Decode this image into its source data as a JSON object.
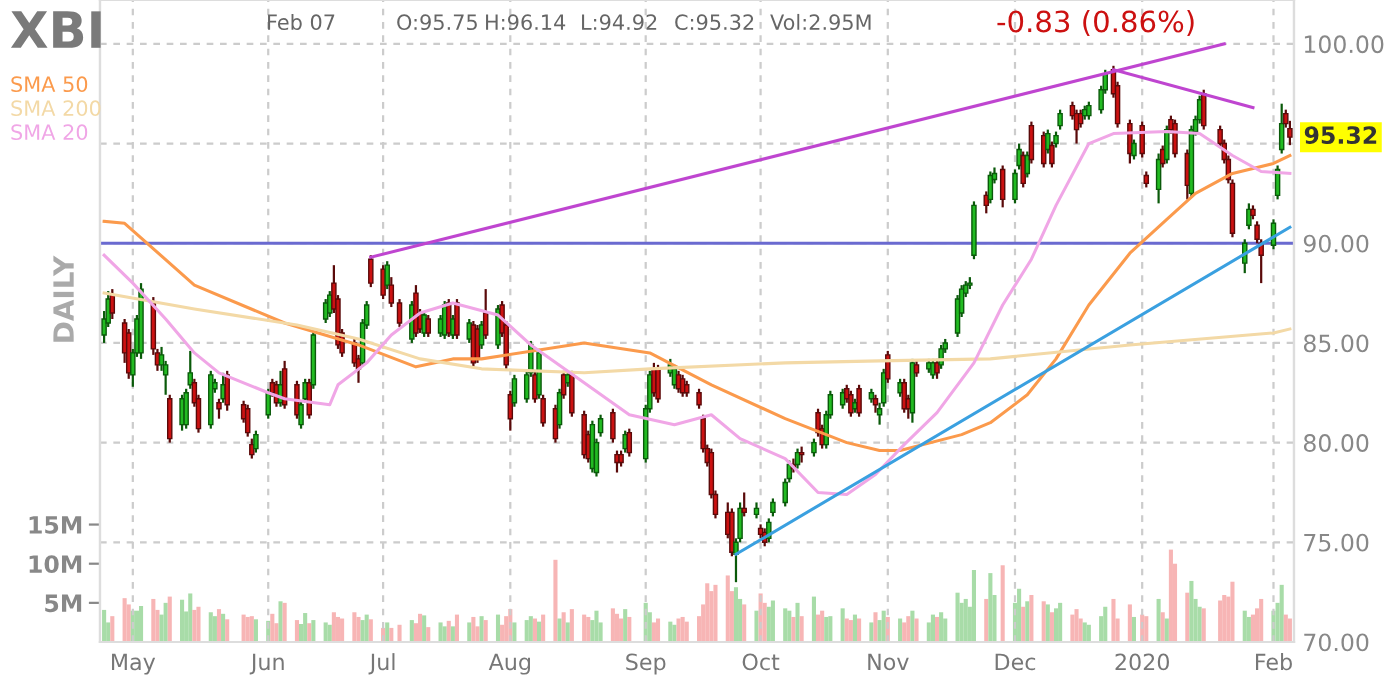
{
  "chart_data": {
    "type": "candlestick",
    "title": "XBI",
    "annotations": [
      "Feb 07",
      "O:95.75",
      "H:96.14",
      "L:94.92",
      "C:95.32",
      "Vol:2.95M",
      "-0.83 (0.86%)",
      "95.32",
      "DAILY"
    ],
    "x": [
      "2019-04-24",
      "2019-04-25",
      "2019-04-26",
      "2019-04-29",
      "2019-04-30",
      "2019-05-01",
      "2019-05-02",
      "2019-05-03",
      "2019-05-06",
      "2019-05-07",
      "2019-05-08",
      "2019-05-09",
      "2019-05-10",
      "2019-05-13",
      "2019-05-14",
      "2019-05-15",
      "2019-05-16",
      "2019-05-17",
      "2019-05-20",
      "2019-05-21",
      "2019-05-22",
      "2019-05-23",
      "2019-05-24",
      "2019-05-28",
      "2019-05-29",
      "2019-05-30",
      "2019-05-31",
      "2019-06-03",
      "2019-06-04",
      "2019-06-05",
      "2019-06-06",
      "2019-06-07",
      "2019-06-10",
      "2019-06-11",
      "2019-06-12",
      "2019-06-13",
      "2019-06-14",
      "2019-06-17",
      "2019-06-18",
      "2019-06-19",
      "2019-06-20",
      "2019-06-21",
      "2019-06-24",
      "2019-06-25",
      "2019-06-26",
      "2019-06-27",
      "2019-06-28",
      "2019-07-01",
      "2019-07-02",
      "2019-07-03",
      "2019-07-05",
      "2019-07-08",
      "2019-07-09",
      "2019-07-10",
      "2019-07-11",
      "2019-07-12",
      "2019-07-15",
      "2019-07-16",
      "2019-07-17",
      "2019-07-18",
      "2019-07-19",
      "2019-07-22",
      "2019-07-23",
      "2019-07-24",
      "2019-07-25",
      "2019-07-26",
      "2019-07-29",
      "2019-07-30",
      "2019-07-31",
      "2019-08-01",
      "2019-08-02",
      "2019-08-05",
      "2019-08-06",
      "2019-08-07",
      "2019-08-08",
      "2019-08-09",
      "2019-08-12",
      "2019-08-13",
      "2019-08-14",
      "2019-08-15",
      "2019-08-16",
      "2019-08-19",
      "2019-08-20",
      "2019-08-21",
      "2019-08-22",
      "2019-08-23",
      "2019-08-26",
      "2019-08-27",
      "2019-08-28",
      "2019-08-29",
      "2019-08-30",
      "2019-09-03",
      "2019-09-04",
      "2019-09-05",
      "2019-09-06",
      "2019-09-09",
      "2019-09-10",
      "2019-09-11",
      "2019-09-12",
      "2019-09-13",
      "2019-09-16",
      "2019-09-17",
      "2019-09-18",
      "2019-09-19",
      "2019-09-20",
      "2019-09-23",
      "2019-09-24",
      "2019-09-25",
      "2019-09-26",
      "2019-09-27",
      "2019-09-30",
      "2019-10-01",
      "2019-10-02",
      "2019-10-03",
      "2019-10-04",
      "2019-10-07",
      "2019-10-08",
      "2019-10-09",
      "2019-10-10",
      "2019-10-11",
      "2019-10-14",
      "2019-10-15",
      "2019-10-16",
      "2019-10-17",
      "2019-10-18",
      "2019-10-21",
      "2019-10-22",
      "2019-10-23",
      "2019-10-24",
      "2019-10-25",
      "2019-10-28",
      "2019-10-29",
      "2019-10-30",
      "2019-10-31",
      "2019-11-01",
      "2019-11-04",
      "2019-11-05",
      "2019-11-06",
      "2019-11-07",
      "2019-11-08",
      "2019-11-11",
      "2019-11-12",
      "2019-11-13",
      "2019-11-14",
      "2019-11-15",
      "2019-11-18",
      "2019-11-19",
      "2019-11-20",
      "2019-11-21",
      "2019-11-22",
      "2019-11-25",
      "2019-11-26",
      "2019-11-27",
      "2019-11-29",
      "2019-12-02",
      "2019-12-03",
      "2019-12-04",
      "2019-12-05",
      "2019-12-06",
      "2019-12-09",
      "2019-12-10",
      "2019-12-11",
      "2019-12-12",
      "2019-12-13",
      "2019-12-16",
      "2019-12-17",
      "2019-12-18",
      "2019-12-19",
      "2019-12-20",
      "2019-12-23",
      "2019-12-24",
      "2019-12-26",
      "2019-12-27",
      "2019-12-30",
      "2019-12-31",
      "2020-01-02",
      "2020-01-03",
      "2020-01-06",
      "2020-01-07",
      "2020-01-08",
      "2020-01-09",
      "2020-01-10",
      "2020-01-13",
      "2020-01-14",
      "2020-01-15",
      "2020-01-16",
      "2020-01-17",
      "2020-01-21",
      "2020-01-22",
      "2020-01-23",
      "2020-01-24",
      "2020-01-27",
      "2020-01-28",
      "2020-01-29",
      "2020-01-30",
      "2020-01-31",
      "2020-02-03",
      "2020-02-04",
      "2020-02-05",
      "2020-02-06",
      "2020-02-07"
    ],
    "ohlc": [
      [
        85.4,
        86.6,
        85.0,
        86.2
      ],
      [
        86.0,
        87.6,
        85.8,
        87.2
      ],
      [
        87.4,
        87.7,
        86.2,
        86.5
      ],
      [
        86.0,
        86.2,
        84.0,
        84.5
      ],
      [
        85.5,
        85.7,
        83.2,
        83.5
      ],
      [
        83.4,
        84.7,
        82.8,
        84.5
      ],
      [
        84.5,
        86.4,
        84.3,
        86.2
      ],
      [
        84.5,
        88.0,
        84.2,
        87.7
      ],
      [
        87.0,
        87.3,
        84.4,
        84.7
      ],
      [
        84.5,
        84.7,
        83.6,
        83.9
      ],
      [
        83.9,
        84.8,
        83.6,
        84.4
      ],
      [
        83.4,
        84.1,
        82.4,
        83.9
      ],
      [
        82.2,
        82.4,
        80.0,
        80.2
      ],
      [
        80.9,
        82.4,
        80.6,
        82.2
      ],
      [
        80.9,
        82.7,
        80.7,
        82.5
      ],
      [
        82.9,
        84.6,
        82.7,
        83.5
      ],
      [
        83.0,
        83.2,
        81.8,
        82.0
      ],
      [
        82.2,
        82.4,
        80.5,
        80.7
      ],
      [
        80.9,
        83.6,
        80.7,
        83.4
      ],
      [
        82.7,
        83.2,
        82.5,
        83.0
      ],
      [
        82.0,
        82.2,
        81.2,
        81.7
      ],
      [
        82.2,
        83.5,
        82.0,
        82.9
      ],
      [
        83.4,
        83.6,
        81.6,
        81.9
      ],
      [
        81.9,
        82.1,
        81.0,
        81.2
      ],
      [
        81.7,
        81.9,
        80.3,
        80.5
      ],
      [
        79.9,
        80.2,
        79.2,
        79.4
      ],
      [
        79.7,
        80.6,
        79.5,
        80.4
      ],
      [
        81.4,
        82.7,
        81.2,
        82.5
      ],
      [
        83.0,
        83.2,
        82.3,
        82.5
      ],
      [
        82.9,
        83.1,
        81.8,
        82.0
      ],
      [
        82.0,
        83.6,
        81.8,
        82.9
      ],
      [
        83.7,
        84.1,
        81.7,
        81.9
      ],
      [
        82.9,
        83.1,
        81.2,
        81.4
      ],
      [
        80.9,
        82.1,
        80.7,
        81.9
      ],
      [
        82.2,
        83.2,
        82.0,
        83.0
      ],
      [
        83.0,
        83.2,
        81.2,
        81.4
      ],
      [
        82.9,
        85.6,
        82.7,
        85.4
      ],
      [
        86.2,
        87.2,
        86.0,
        87.0
      ],
      [
        86.5,
        87.6,
        86.3,
        87.4
      ],
      [
        88.0,
        88.9,
        86.5,
        86.7
      ],
      [
        87.2,
        87.4,
        84.7,
        84.9
      ],
      [
        85.5,
        85.7,
        84.3,
        84.5
      ],
      [
        85.0,
        85.2,
        83.8,
        84.0
      ],
      [
        84.2,
        84.4,
        83.0,
        83.7
      ],
      [
        84.0,
        86.2,
        83.8,
        86.0
      ],
      [
        85.9,
        87.1,
        85.7,
        86.9
      ],
      [
        89.2,
        89.4,
        87.8,
        88.0
      ],
      [
        88.7,
        88.9,
        87.2,
        87.4
      ],
      [
        87.9,
        89.1,
        87.7,
        88.9
      ],
      [
        87.9,
        88.3,
        86.8,
        87.0
      ],
      [
        87.0,
        87.2,
        85.8,
        86.0
      ],
      [
        85.2,
        87.1,
        85.0,
        86.9
      ],
      [
        87.5,
        87.9,
        85.3,
        85.5
      ],
      [
        86.5,
        86.7,
        85.5,
        85.7
      ],
      [
        85.5,
        86.6,
        85.3,
        86.4
      ],
      [
        86.2,
        86.4,
        85.3,
        85.5
      ],
      [
        85.5,
        86.4,
        85.3,
        86.2
      ],
      [
        85.4,
        87.1,
        85.2,
        86.9
      ],
      [
        87.0,
        87.2,
        85.3,
        85.5
      ],
      [
        85.4,
        86.4,
        85.2,
        86.2
      ],
      [
        87.0,
        87.2,
        85.2,
        85.4
      ],
      [
        85.2,
        86.2,
        85.0,
        86.0
      ],
      [
        85.9,
        86.1,
        83.8,
        84.0
      ],
      [
        85.7,
        85.9,
        84.0,
        84.2
      ],
      [
        84.9,
        86.1,
        84.7,
        85.9
      ],
      [
        86.5,
        87.7,
        85.2,
        85.4
      ],
      [
        84.9,
        86.9,
        84.7,
        86.7
      ],
      [
        86.9,
        87.1,
        85.3,
        85.5
      ],
      [
        85.9,
        86.1,
        83.7,
        83.9
      ],
      [
        82.4,
        82.6,
        80.6,
        81.2
      ],
      [
        82.0,
        83.4,
        81.8,
        83.2
      ],
      [
        82.2,
        83.6,
        82.0,
        83.4
      ],
      [
        83.5,
        85.1,
        83.3,
        84.9
      ],
      [
        83.4,
        83.6,
        82.0,
        82.2
      ],
      [
        82.4,
        84.7,
        82.2,
        84.5
      ],
      [
        82.2,
        82.4,
        80.8,
        81.0
      ],
      [
        81.7,
        81.9,
        80.0,
        80.2
      ],
      [
        80.9,
        82.7,
        80.7,
        82.5
      ],
      [
        83.4,
        83.6,
        82.2,
        82.4
      ],
      [
        83.0,
        83.6,
        82.8,
        83.4
      ],
      [
        83.4,
        83.6,
        81.3,
        81.5
      ],
      [
        81.4,
        81.6,
        79.2,
        79.4
      ],
      [
        80.4,
        80.6,
        79.0,
        79.2
      ],
      [
        78.7,
        81.1,
        78.5,
        80.9
      ],
      [
        78.5,
        80.2,
        78.3,
        80.0
      ],
      [
        80.5,
        81.4,
        80.3,
        81.2
      ],
      [
        81.5,
        81.7,
        80.0,
        80.2
      ],
      [
        79.4,
        79.6,
        78.5,
        79.0
      ],
      [
        79.4,
        79.6,
        78.8,
        79.0
      ],
      [
        79.7,
        80.6,
        79.5,
        80.4
      ],
      [
        80.5,
        80.7,
        79.3,
        79.5
      ],
      [
        79.2,
        81.9,
        79.0,
        81.7
      ],
      [
        81.7,
        83.6,
        81.5,
        83.4
      ],
      [
        83.7,
        84.0,
        82.3,
        82.5
      ],
      [
        83.7,
        83.9,
        82.0,
        82.2
      ],
      [
        83.5,
        84.2,
        83.3,
        83.9
      ],
      [
        82.9,
        83.9,
        82.7,
        83.7
      ],
      [
        83.4,
        83.6,
        82.5,
        82.7
      ],
      [
        83.2,
        83.4,
        82.3,
        82.5
      ],
      [
        82.9,
        83.1,
        82.3,
        82.5
      ],
      [
        82.5,
        82.7,
        81.7,
        81.9
      ],
      [
        81.2,
        81.4,
        79.5,
        79.7
      ],
      [
        79.7,
        79.9,
        78.8,
        79.0
      ],
      [
        79.5,
        79.7,
        77.2,
        77.4
      ],
      [
        77.4,
        77.6,
        76.2,
        76.4
      ],
      [
        76.5,
        77.0,
        75.2,
        75.4
      ],
      [
        76.5,
        76.7,
        74.3,
        74.5
      ],
      [
        74.4,
        75.2,
        73.0,
        75.0
      ],
      [
        75.2,
        77.0,
        75.0,
        76.7
      ],
      [
        76.7,
        77.5,
        76.3,
        76.5
      ],
      [
        76.4,
        77.0,
        76.2,
        76.7
      ],
      [
        75.7,
        75.9,
        75.2,
        75.4
      ],
      [
        75.5,
        75.7,
        74.8,
        75.0
      ],
      [
        75.2,
        76.2,
        75.0,
        76.0
      ],
      [
        76.5,
        77.2,
        76.3,
        77.0
      ],
      [
        77.0,
        78.2,
        76.8,
        78.0
      ],
      [
        78.2,
        79.1,
        78.0,
        78.9
      ],
      [
        78.9,
        79.2,
        78.5,
        78.7
      ],
      [
        78.9,
        79.7,
        78.7,
        79.5
      ],
      [
        79.5,
        79.8,
        79.0,
        79.4
      ],
      [
        79.5,
        80.2,
        79.3,
        80.0
      ],
      [
        81.5,
        81.7,
        80.3,
        80.5
      ],
      [
        80.7,
        80.9,
        79.7,
        79.9
      ],
      [
        79.9,
        81.6,
        79.7,
        81.4
      ],
      [
        81.4,
        82.6,
        81.2,
        82.4
      ],
      [
        81.9,
        82.7,
        81.7,
        82.5
      ],
      [
        82.7,
        82.9,
        82.0,
        82.2
      ],
      [
        82.4,
        82.6,
        81.3,
        81.5
      ],
      [
        81.7,
        82.2,
        81.5,
        82.0
      ],
      [
        82.7,
        82.9,
        81.3,
        81.5
      ],
      [
        82.2,
        82.7,
        82.0,
        82.5
      ],
      [
        82.2,
        82.4,
        81.5,
        81.9
      ],
      [
        81.4,
        82.0,
        80.9,
        81.7
      ],
      [
        82.0,
        83.7,
        81.8,
        83.5
      ],
      [
        84.4,
        84.6,
        83.0,
        83.2
      ],
      [
        82.5,
        83.2,
        82.3,
        83.0
      ],
      [
        83.0,
        83.2,
        81.5,
        81.7
      ],
      [
        82.2,
        82.4,
        81.2,
        81.7
      ],
      [
        81.5,
        84.2,
        81.0,
        84.0
      ],
      [
        83.9,
        84.1,
        83.3,
        83.5
      ],
      [
        83.7,
        84.2,
        83.5,
        84.0
      ],
      [
        83.4,
        84.2,
        83.2,
        84.0
      ],
      [
        84.0,
        84.2,
        83.2,
        83.5
      ],
      [
        83.9,
        84.9,
        83.7,
        84.7
      ],
      [
        84.7,
        85.2,
        84.5,
        85.0
      ],
      [
        85.5,
        87.4,
        85.3,
        87.2
      ],
      [
        86.5,
        87.9,
        86.3,
        87.7
      ],
      [
        87.5,
        88.1,
        87.3,
        87.9
      ],
      [
        87.9,
        88.3,
        87.7,
        88.0
      ],
      [
        89.4,
        92.1,
        89.2,
        91.9
      ],
      [
        92.4,
        92.6,
        91.5,
        91.9
      ],
      [
        92.2,
        93.6,
        92.0,
        93.4
      ],
      [
        93.2,
        93.8,
        93.0,
        93.5
      ],
      [
        93.7,
        93.9,
        91.8,
        92.2
      ],
      [
        92.2,
        93.7,
        92.0,
        93.5
      ],
      [
        93.9,
        95.0,
        93.7,
        94.7
      ],
      [
        94.4,
        94.6,
        92.8,
        93.0
      ],
      [
        93.5,
        94.6,
        93.3,
        94.4
      ],
      [
        95.9,
        96.1,
        94.0,
        94.2
      ],
      [
        95.4,
        95.6,
        93.8,
        94.0
      ],
      [
        94.7,
        95.7,
        94.5,
        95.5
      ],
      [
        94.9,
        95.1,
        93.8,
        94.0
      ],
      [
        95.0,
        95.6,
        94.8,
        95.4
      ],
      [
        95.9,
        96.7,
        95.7,
        96.5
      ],
      [
        96.9,
        97.1,
        96.2,
        96.4
      ],
      [
        96.5,
        96.7,
        95.0,
        95.7
      ],
      [
        96.5,
        96.7,
        95.8,
        96.0
      ],
      [
        96.4,
        96.9,
        96.2,
        96.7
      ],
      [
        96.4,
        97.1,
        96.2,
        96.9
      ],
      [
        96.7,
        97.9,
        96.5,
        97.7
      ],
      [
        97.7,
        98.7,
        97.5,
        98.5
      ],
      [
        98.7,
        98.9,
        97.3,
        97.5
      ],
      [
        97.9,
        98.1,
        95.8,
        96.0
      ],
      [
        96.0,
        96.2,
        94.0,
        94.5
      ],
      [
        94.4,
        95.2,
        94.2,
        95.0
      ],
      [
        95.9,
        96.1,
        94.3,
        94.5
      ],
      [
        93.4,
        93.6,
        92.8,
        93.0
      ],
      [
        92.7,
        94.5,
        92.0,
        94.2
      ],
      [
        94.7,
        94.9,
        93.8,
        94.0
      ],
      [
        94.2,
        95.9,
        94.0,
        95.7
      ],
      [
        96.2,
        96.4,
        95.5,
        95.7
      ],
      [
        96.0,
        96.2,
        94.3,
        94.5
      ],
      [
        94.5,
        94.7,
        92.2,
        92.9
      ],
      [
        92.5,
        95.9,
        92.3,
        95.7
      ],
      [
        95.6,
        96.4,
        95.4,
        96.2
      ],
      [
        96.2,
        97.4,
        96.0,
        97.2
      ],
      [
        97.5,
        97.7,
        95.7,
        95.9
      ],
      [
        95.7,
        95.9,
        94.8,
        95.0
      ],
      [
        95.0,
        95.2,
        94.0,
        94.2
      ],
      [
        94.2,
        94.4,
        93.0,
        93.2
      ],
      [
        93.0,
        93.2,
        90.3,
        90.5
      ],
      [
        89.0,
        90.2,
        88.5,
        90.0
      ],
      [
        90.9,
        92.0,
        90.7,
        91.7
      ],
      [
        91.7,
        91.9,
        91.2,
        91.4
      ],
      [
        90.9,
        91.1,
        90.0,
        90.2
      ],
      [
        90.0,
        90.2,
        88.0,
        89.4
      ],
      [
        89.9,
        91.2,
        89.7,
        91.0
      ],
      [
        92.4,
        93.9,
        92.2,
        93.7
      ],
      [
        94.7,
        97.0,
        94.5,
        96.0
      ],
      [
        96.5,
        96.7,
        95.8,
        96.0
      ],
      [
        95.75,
        96.14,
        94.92,
        95.32
      ]
    ],
    "series": [
      {
        "type": "bar",
        "axis": "y2",
        "values": [
          4.1,
          2.5,
          3.3,
          5.6,
          4.8,
          4.0,
          4.0,
          4.6,
          5.5,
          4.1,
          3.5,
          5.0,
          5.8,
          5.4,
          3.9,
          6.2,
          4.1,
          4.5,
          3.8,
          3.3,
          4.2,
          3.6,
          2.9,
          3.5,
          3.2,
          3.3,
          2.9,
          2.7,
          3.6,
          2.4,
          5.2,
          5.0,
          2.8,
          2.3,
          3.7,
          2.4,
          2.8,
          2.5,
          2.2,
          3.8,
          3.2,
          3.0,
          3.8,
          3.2,
          2.8,
          3.5,
          2.9,
          1.8,
          2.5,
          1.8,
          2.2,
          2.8,
          2.4,
          3.6,
          3.4,
          1.9,
          2.5,
          2.0,
          2.7,
          2.0,
          3.5,
          2.5,
          3.2,
          2.0,
          3.3,
          2.8,
          3.5,
          2.2,
          3.3,
          4.2,
          2.5,
          2.8,
          3.3,
          3.0,
          2.6,
          3.5,
          10.5,
          3.0,
          3.8,
          2.5,
          4.2,
          3.5,
          3.2,
          2.8,
          4.0,
          2.5,
          4.3,
          3.6,
          3.0,
          4.2,
          3.2,
          5.0,
          3.8,
          2.5,
          3.0,
          2.6,
          2.2,
          3.0,
          3.2,
          2.6,
          3.3,
          4.8,
          7.5,
          6.5,
          7.3,
          8.5,
          6.5,
          7.0,
          5.5,
          4.8,
          4.0,
          6.2,
          5.0,
          4.5,
          5.3,
          4.3,
          4.0,
          3.2,
          5.0,
          3.3,
          5.8,
          3.5,
          4.0,
          3.2,
          3.3,
          4.3,
          3.0,
          2.8,
          3.5,
          3.0,
          2.5,
          3.8,
          2.8,
          4.0,
          3.2,
          3.0,
          2.5,
          3.3,
          4.0,
          3.0,
          2.5,
          3.5,
          3.2,
          3.8,
          3.0,
          6.3,
          5.0,
          5.5,
          4.5,
          9.2,
          5.5,
          8.8,
          6.0,
          9.8,
          5.0,
          6.8,
          4.5,
          5.2,
          6.0,
          5.2,
          4.8,
          3.8,
          4.3,
          5.0,
          3.5,
          4.2,
          3.0,
          2.5,
          2.2,
          3.3,
          4.5,
          5.5,
          3.0,
          4.8,
          3.2,
          3.5,
          3.3,
          5.5,
          3.8,
          3.0,
          11.8,
          10.0,
          6.3,
          7.8,
          5.5,
          4.5,
          4.3,
          5.3,
          6.0,
          5.8,
          7.7,
          4.0,
          3.2,
          3.5,
          4.3,
          5.5,
          4.0,
          5.0,
          7.3,
          3.5,
          3.0
        ],
        "colors": [
          "#a8dca8",
          "#a8dca8",
          "#f7b5b5",
          "#f7b5b5",
          "#f7b5b5",
          "#a8dca8",
          "#a8dca8",
          "#a8dca8",
          "#f7b5b5",
          "#f7b5b5",
          "#a8dca8",
          "#a8dca8",
          "#f7b5b5",
          "#a8dca8",
          "#a8dca8",
          "#a8dca8",
          "#f7b5b5",
          "#f7b5b5",
          "#a8dca8",
          "#a8dca8",
          "#f7b5b5",
          "#a8dca8",
          "#f7b5b5",
          "#f7b5b5",
          "#f7b5b5",
          "#f7b5b5",
          "#a8dca8",
          "#a8dca8",
          "#f7b5b5",
          "#f7b5b5",
          "#a8dca8",
          "#f7b5b5",
          "#f7b5b5",
          "#a8dca8",
          "#a8dca8",
          "#f7b5b5",
          "#a8dca8",
          "#a8dca8",
          "#a8dca8",
          "#f7b5b5",
          "#f7b5b5",
          "#f7b5b5",
          "#f7b5b5",
          "#f7b5b5",
          "#a8dca8",
          "#a8dca8",
          "#f7b5b5",
          "#f7b5b5",
          "#a8dca8",
          "#f7b5b5",
          "#f7b5b5",
          "#a8dca8",
          "#f7b5b5",
          "#f7b5b5",
          "#a8dca8",
          "#f7b5b5",
          "#a8dca8",
          "#a8dca8",
          "#f7b5b5",
          "#a8dca8",
          "#f7b5b5",
          "#a8dca8",
          "#f7b5b5",
          "#f7b5b5",
          "#a8dca8",
          "#f7b5b5",
          "#a8dca8",
          "#f7b5b5",
          "#f7b5b5",
          "#f7b5b5",
          "#a8dca8",
          "#a8dca8",
          "#a8dca8",
          "#f7b5b5",
          "#a8dca8",
          "#f7b5b5",
          "#f7b5b5",
          "#a8dca8",
          "#f7b5b5",
          "#a8dca8",
          "#f7b5b5",
          "#f7b5b5",
          "#f7b5b5",
          "#a8dca8",
          "#a8dca8",
          "#a8dca8",
          "#f7b5b5",
          "#f7b5b5",
          "#f7b5b5",
          "#a8dca8",
          "#f7b5b5",
          "#a8dca8",
          "#a8dca8",
          "#f7b5b5",
          "#f7b5b5",
          "#a8dca8",
          "#a8dca8",
          "#f7b5b5",
          "#f7b5b5",
          "#f7b5b5",
          "#f7b5b5",
          "#f7b5b5",
          "#f7b5b5",
          "#f7b5b5",
          "#f7b5b5",
          "#f7b5b5",
          "#f7b5b5",
          "#a8dca8",
          "#a8dca8",
          "#f7b5b5",
          "#a8dca8",
          "#f7b5b5",
          "#f7b5b5",
          "#a8dca8",
          "#a8dca8",
          "#a8dca8",
          "#a8dca8",
          "#f7b5b5",
          "#a8dca8",
          "#f7b5b5",
          "#a8dca8",
          "#f7b5b5",
          "#f7b5b5",
          "#a8dca8",
          "#a8dca8",
          "#a8dca8",
          "#f7b5b5",
          "#f7b5b5",
          "#a8dca8",
          "#f7b5b5",
          "#a8dca8",
          "#f7b5b5",
          "#a8dca8",
          "#a8dca8",
          "#f7b5b5",
          "#a8dca8",
          "#f7b5b5",
          "#f7b5b5",
          "#a8dca8",
          "#f7b5b5",
          "#a8dca8",
          "#a8dca8",
          "#f7b5b5",
          "#a8dca8",
          "#a8dca8",
          "#a8dca8",
          "#a8dca8",
          "#a8dca8",
          "#a8dca8",
          "#a8dca8",
          "#f7b5b5",
          "#a8dca8",
          "#a8dca8",
          "#f7b5b5",
          "#a8dca8",
          "#a8dca8",
          "#f7b5b5",
          "#a8dca8",
          "#f7b5b5",
          "#f7b5b5",
          "#a8dca8",
          "#f7b5b5",
          "#a8dca8",
          "#a8dca8",
          "#f7b5b5",
          "#f7b5b5",
          "#f7b5b5",
          "#a8dca8",
          "#a8dca8",
          "#a8dca8",
          "#a8dca8",
          "#f7b5b5",
          "#f7b5b5",
          "#f7b5b5",
          "#a8dca8",
          "#f7b5b5",
          "#f7b5b5",
          "#a8dca8",
          "#f7b5b5",
          "#a8dca8",
          "#f7b5b5",
          "#f7b5b5",
          "#f7b5b5",
          "#a8dca8",
          "#a8dca8",
          "#a8dca8",
          "#f7b5b5",
          "#f7b5b5",
          "#f7b5b5",
          "#f7b5b5",
          "#f7b5b5",
          "#a8dca8",
          "#a8dca8",
          "#f7b5b5",
          "#f7b5b5",
          "#f7b5b5",
          "#a8dca8",
          "#a8dca8",
          "#a8dca8",
          "#f7b5b5",
          "#f7b5b5"
        ]
      },
      {
        "type": "line",
        "name": "SMA 50",
        "color": "#fb9a4c",
        "x": [
          "2019-04-24",
          "2019-04-29",
          "2019-05-16",
          "2019-06-07",
          "2019-06-25",
          "2019-07-09",
          "2019-07-18",
          "2019-07-25",
          "2019-08-19",
          "2019-09-04",
          "2019-09-19",
          "2019-10-07",
          "2019-10-22",
          "2019-10-30",
          "2019-11-04",
          "2019-11-19",
          "2019-11-26",
          "2019-12-05",
          "2019-12-12",
          "2019-12-20",
          "2019-12-30",
          "2020-01-08",
          "2020-01-15",
          "2020-01-24",
          "2020-02-03",
          "2020-02-07"
        ],
        "values": [
          91.1,
          91.0,
          87.9,
          86.0,
          84.9,
          83.8,
          84.2,
          84.2,
          85.0,
          84.5,
          82.9,
          81.2,
          80.0,
          79.6,
          79.6,
          80.4,
          81.0,
          82.4,
          84.2,
          86.9,
          89.5,
          91.2,
          92.5,
          93.5,
          94.0,
          94.4
        ]
      },
      {
        "type": "line",
        "name": "SMA 200",
        "color": "#f3d9a6",
        "x": [
          "2019-04-24",
          "2019-05-16",
          "2019-06-10",
          "2019-06-25",
          "2019-07-10",
          "2019-07-25",
          "2019-08-19",
          "2019-09-04",
          "2019-10-07",
          "2019-10-30",
          "2019-11-26",
          "2019-12-30",
          "2020-02-03",
          "2020-02-07"
        ],
        "values": [
          87.5,
          86.7,
          85.9,
          85.2,
          84.2,
          83.7,
          83.5,
          83.7,
          84.0,
          84.1,
          84.2,
          84.9,
          85.5,
          85.7
        ]
      },
      {
        "type": "line",
        "name": "SMA 20",
        "color": "#f0a6e6",
        "x": [
          "2019-04-24",
          "2019-05-01",
          "2019-05-09",
          "2019-05-16",
          "2019-05-22",
          "2019-06-03",
          "2019-06-07",
          "2019-06-18",
          "2019-06-20",
          "2019-06-27",
          "2019-07-03",
          "2019-07-10",
          "2019-07-18",
          "2019-07-29",
          "2019-08-06",
          "2019-08-19",
          "2019-08-30",
          "2019-09-10",
          "2019-09-19",
          "2019-09-26",
          "2019-10-07",
          "2019-10-15",
          "2019-10-22",
          "2019-10-29",
          "2019-11-05",
          "2019-11-13",
          "2019-11-22",
          "2019-11-29",
          "2019-12-06",
          "2019-12-12",
          "2019-12-20",
          "2019-12-26",
          "2020-01-08",
          "2020-01-16",
          "2020-01-24",
          "2020-01-31",
          "2020-02-07"
        ],
        "values": [
          89.4,
          88.0,
          86.2,
          84.5,
          83.5,
          82.5,
          82.2,
          81.9,
          82.9,
          84.0,
          85.4,
          86.5,
          87.0,
          86.4,
          84.9,
          83.0,
          81.4,
          80.9,
          81.4,
          80.2,
          79.2,
          77.5,
          77.4,
          78.4,
          79.9,
          81.5,
          84.0,
          86.9,
          89.2,
          91.9,
          95.0,
          95.5,
          95.6,
          95.5,
          94.4,
          93.6,
          93.5
        ]
      },
      {
        "type": "line",
        "color": "#bf45d0",
        "x": [
          "2019-06-28",
          "2020-01-22"
        ],
        "values": [
          89.3,
          100.0
        ]
      },
      {
        "type": "line",
        "color": "#bf45d0",
        "x": [
          "2019-12-26",
          "2020-01-29"
        ],
        "values": [
          98.7,
          96.8
        ]
      },
      {
        "type": "line",
        "color": "#3aa0e0",
        "x": [
          "2019-09-25",
          "2020-02-07"
        ],
        "values": [
          74.4,
          90.8
        ]
      }
    ],
    "ref_lines": [
      {
        "axis": "y",
        "value": 90,
        "color": "#6a6ad0"
      }
    ],
    "xlim": [
      "2019-04-24",
      "2020-02-07"
    ],
    "xticks": [
      {
        "value": "2019-05-01",
        "label": "May"
      },
      {
        "value": "2019-06-03",
        "label": "Jun"
      },
      {
        "value": "2019-07-01",
        "label": "Jul"
      },
      {
        "value": "2019-08-01",
        "label": "Aug"
      },
      {
        "value": "2019-09-03",
        "label": "Sep"
      },
      {
        "value": "2019-10-01",
        "label": "Oct"
      },
      {
        "value": "2019-11-01",
        "label": "Nov"
      },
      {
        "value": "2019-12-02",
        "label": "Dec"
      },
      {
        "value": "2020-01-02",
        "label": "2020"
      },
      {
        "value": "2020-02-03",
        "label": "Feb"
      }
    ],
    "ylim": [
      70,
      102.2
    ],
    "yticks": [
      {
        "value": 70,
        "label": "70.00"
      },
      {
        "value": 75,
        "label": "75.00"
      },
      {
        "value": 80,
        "label": "80.00"
      },
      {
        "value": 85,
        "label": "85.00"
      },
      {
        "value": 90,
        "label": "90.00"
      },
      {
        "value": 95,
        "label": null
      },
      {
        "value": 100,
        "label": "100.00"
      }
    ],
    "y2lim": [
      0,
      82
    ],
    "y2ticks": [
      {
        "value": 5,
        "label": "5M"
      },
      {
        "value": 10,
        "label": "10M"
      },
      {
        "value": 15,
        "label": "15M"
      }
    ],
    "grid": true,
    "legend": "top left"
  }
}
